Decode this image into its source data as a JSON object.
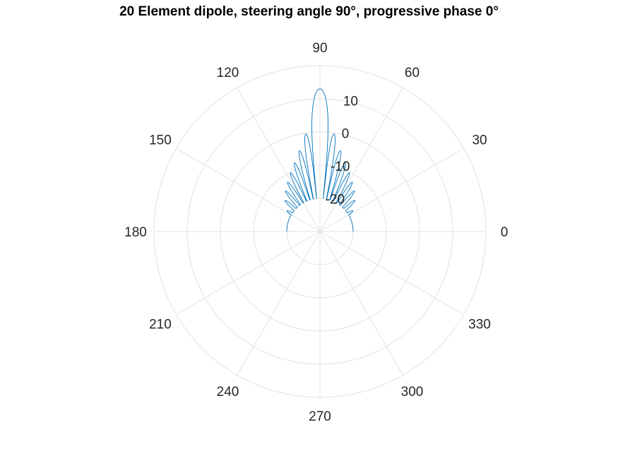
{
  "chart_data": {
    "type": "polar-line",
    "title": "20 Element dipole, steering angle 90°, progressive phase 0°",
    "theta_unit": "degrees",
    "theta_ticks": [
      0,
      30,
      60,
      90,
      120,
      150,
      180,
      210,
      240,
      270,
      300,
      330
    ],
    "theta_tick_labels": [
      "0",
      "30",
      "60",
      "90",
      "120",
      "150",
      "180",
      "210",
      "240",
      "270",
      "300",
      "330"
    ],
    "r_ticks": [
      -20,
      -10,
      0,
      10
    ],
    "r_tick_labels": [
      "-20",
      "-10",
      "0",
      "10"
    ],
    "r_lim": [
      -30,
      20
    ],
    "grid": true,
    "series": [
      {
        "color": "#0072bd",
        "elements": 20,
        "steering_angle_deg": 90,
        "progressive_phase_deg": 0,
        "peak_gain_db": 13.0,
        "floor_db": -20,
        "theta_range_deg": [
          0,
          180
        ]
      }
    ]
  }
}
